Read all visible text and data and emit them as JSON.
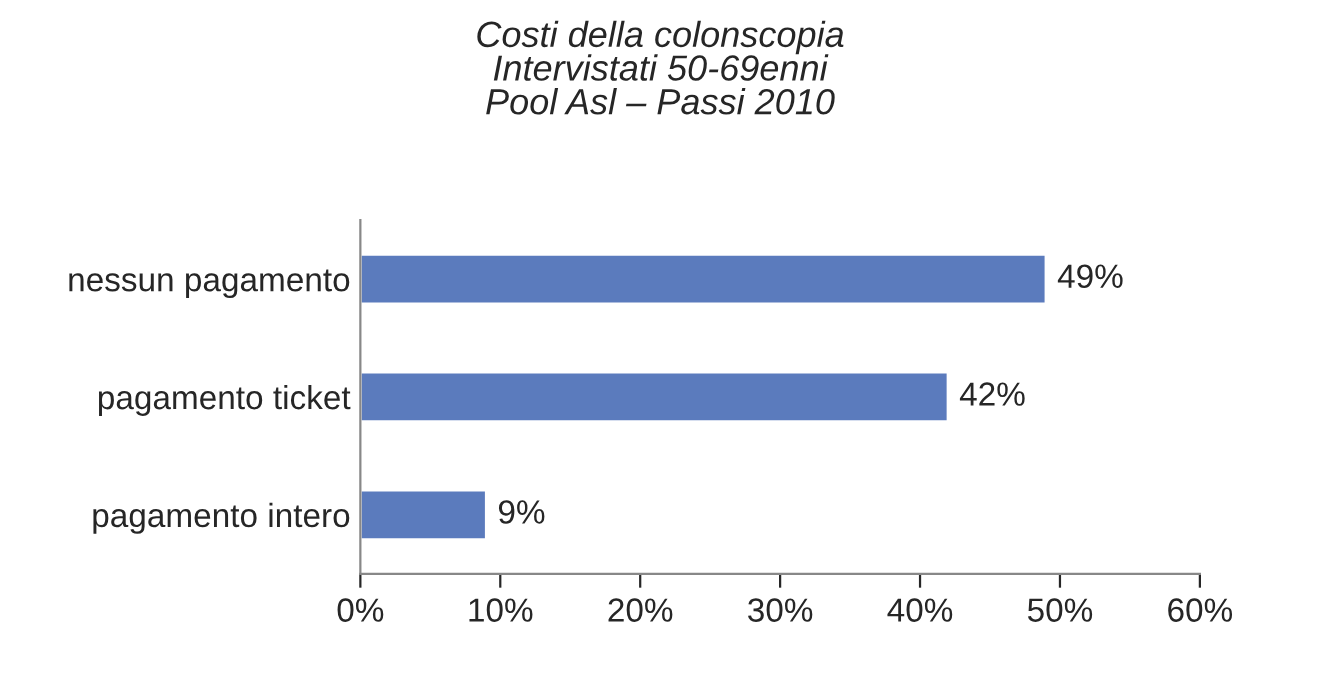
{
  "chart_data": {
    "type": "bar",
    "orientation": "horizontal",
    "title": "Costi della colonscopia\nIntervistati 50-69enni\nPool Asl – Passi 2010",
    "categories": [
      "nessun pagamento",
      "pagamento ticket",
      "pagamento intero"
    ],
    "values": [
      49,
      42,
      9
    ],
    "value_labels": [
      "49%",
      "42%",
      "9%"
    ],
    "color": "#5b7bbd",
    "xlim": [
      0,
      60
    ],
    "xticks": [
      {
        "value": 0,
        "label": "0%"
      },
      {
        "value": 10,
        "label": "10%"
      },
      {
        "value": 20,
        "label": "20%"
      },
      {
        "value": 30,
        "label": "30%"
      },
      {
        "value": 40,
        "label": "40%"
      },
      {
        "value": 50,
        "label": "50%"
      },
      {
        "value": 60,
        "label": "60%"
      }
    ],
    "grid": false,
    "legend": false
  }
}
